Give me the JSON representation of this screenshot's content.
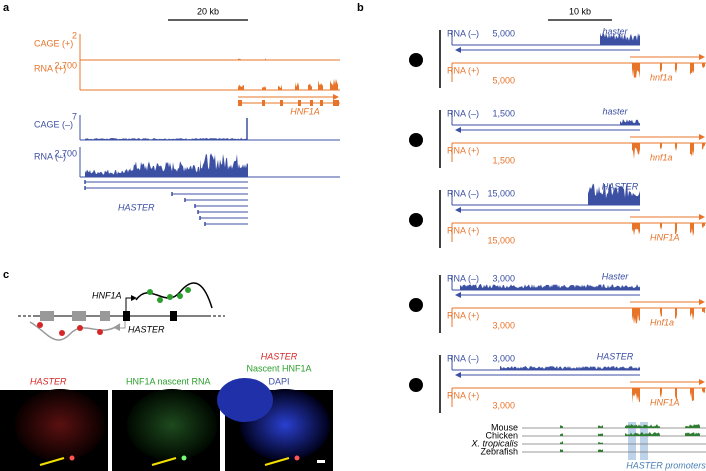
{
  "panel_a": {
    "label": "a",
    "scale": "20 kb",
    "tracks": [
      {
        "name": "CAGE (+)",
        "max": "2"
      },
      {
        "name": "RNA (+)",
        "max": "2,700"
      },
      {
        "name": "CAGE (–)",
        "max": "7"
      },
      {
        "name": "RNA (–)",
        "max": "2,700"
      }
    ],
    "gene_plus": "HNF1A",
    "gene_minus": "HASTER"
  },
  "panel_b": {
    "label": "b",
    "scale": "10 kb",
    "species": [
      {
        "minus_label": "RNA (–)",
        "minus_max": "5,000",
        "minus_gene": "haster",
        "plus_label": "RNA (+)",
        "plus_max": "5,000",
        "plus_gene": "hnf1a"
      },
      {
        "minus_label": "RNA (–)",
        "minus_max": "1,500",
        "minus_gene": "haster",
        "plus_label": "RNA (+)",
        "plus_max": "1,500",
        "plus_gene": "hnf1a"
      },
      {
        "minus_label": "RNA (–)",
        "minus_max": "15,000",
        "minus_gene": "HASTER",
        "plus_label": "RNA (+)",
        "plus_max": "15,000",
        "plus_gene": "HNF1A"
      },
      {
        "minus_label": "RNA (–)",
        "minus_max": "3,000",
        "minus_gene": "Haster",
        "plus_label": "RNA (+)",
        "plus_max": "3,000",
        "plus_gene": "Hnf1a"
      },
      {
        "minus_label": "RNA (–)",
        "minus_max": "3,000",
        "minus_gene": "HASTER",
        "plus_label": "RNA (+)",
        "plus_max": "3,000",
        "plus_gene": "HNF1A"
      }
    ],
    "conservation": [
      "Mouse",
      "Chicken",
      "X. tropicalis",
      "Zebrafish"
    ],
    "promoters": "HASTER promoters"
  },
  "panel_c": {
    "label": "c",
    "diagram_gene_plus": "HNF1A",
    "diagram_gene_minus": "HASTER",
    "image_1": "HASTER",
    "image_2": "HNF1A nascent RNA",
    "image_3": [
      "HASTER",
      "Nascent HNF1A",
      "DAPI"
    ]
  }
}
